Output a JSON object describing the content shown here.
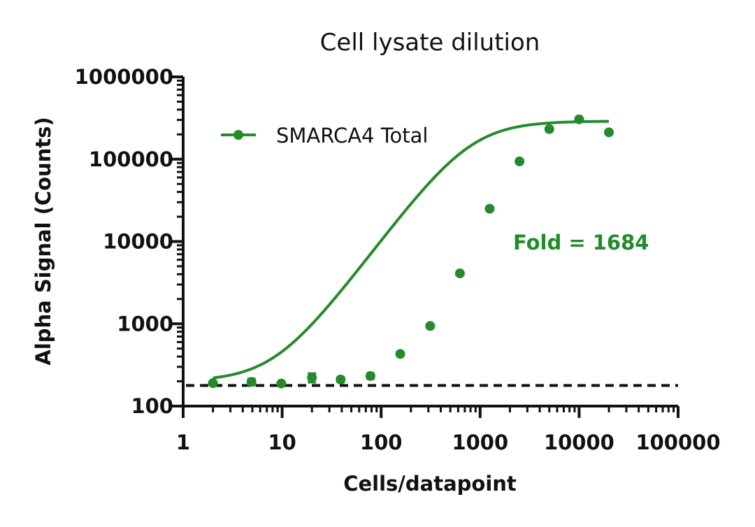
{
  "chart_data": {
    "type": "scatter",
    "title": "Cell lysate dilution",
    "xlabel": "Cells/datapoint",
    "ylabel": "Alpha Signal (Counts)",
    "x_scale": "log",
    "y_scale": "log",
    "xlim": [
      1,
      100000
    ],
    "ylim": [
      100,
      1000000
    ],
    "x_ticks": [
      1,
      10,
      100,
      1000,
      10000,
      100000
    ],
    "x_tick_labels": [
      "1",
      "10",
      "100",
      "1000",
      "10000",
      "100000"
    ],
    "y_ticks": [
      100,
      1000,
      10000,
      100000,
      1000000
    ],
    "y_tick_labels": [
      "100",
      "1000",
      "10000",
      "100000",
      "1000000"
    ],
    "grid": false,
    "legend_position": "top-left",
    "series": [
      {
        "name": "SMARCA4 Total",
        "color": "#238b2b",
        "points": [
          {
            "x": 2,
            "y": 190,
            "err": 8
          },
          {
            "x": 4.9,
            "y": 197,
            "err": 18
          },
          {
            "x": 9.8,
            "y": 188,
            "err": 6
          },
          {
            "x": 20,
            "y": 222,
            "err": 28
          },
          {
            "x": 39,
            "y": 210,
            "err": 14
          },
          {
            "x": 78,
            "y": 232,
            "err": 18
          },
          {
            "x": 156,
            "y": 430,
            "err": 18
          },
          {
            "x": 313,
            "y": 940,
            "err": 40
          },
          {
            "x": 625,
            "y": 4100,
            "err": 130
          },
          {
            "x": 1250,
            "y": 25000,
            "err": 900
          },
          {
            "x": 2500,
            "y": 94000,
            "err": 4000
          },
          {
            "x": 5000,
            "y": 232000,
            "err": 8000
          },
          {
            "x": 10000,
            "y": 305000,
            "err": 9000
          },
          {
            "x": 20000,
            "y": 212000,
            "err": 6000
          }
        ],
        "fit": {
          "model": "four-parameter logistic",
          "bottom": 200,
          "top": 290000,
          "ec50": 800,
          "hill": 1.6,
          "x_range": [
            2,
            20000
          ]
        }
      }
    ],
    "reference_line": {
      "y": 178,
      "style": "dashed",
      "color": "#111111"
    },
    "annotations": [
      {
        "text": "Fold = 1684",
        "color": "#238b2b"
      }
    ]
  }
}
